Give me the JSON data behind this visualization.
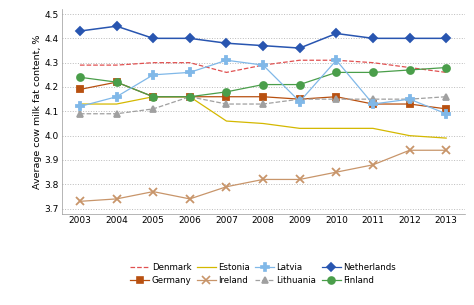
{
  "years": [
    2003,
    2004,
    2005,
    2006,
    2007,
    2008,
    2009,
    2010,
    2011,
    2012,
    2013
  ],
  "series": {
    "Denmark": [
      4.29,
      4.29,
      4.3,
      4.3,
      4.26,
      4.29,
      4.31,
      4.31,
      4.3,
      4.28,
      4.26
    ],
    "Germany": [
      4.19,
      4.22,
      4.16,
      4.16,
      4.16,
      4.16,
      4.15,
      4.16,
      4.13,
      4.13,
      4.11
    ],
    "Estonia": [
      4.13,
      4.13,
      4.16,
      4.16,
      4.06,
      4.05,
      4.03,
      4.03,
      4.03,
      4.0,
      3.99
    ],
    "Ireland": [
      3.73,
      3.74,
      3.77,
      3.74,
      3.79,
      3.82,
      3.82,
      3.85,
      3.88,
      3.94,
      3.94
    ],
    "Latvia": [
      4.12,
      4.16,
      4.25,
      4.26,
      4.31,
      4.29,
      4.14,
      4.31,
      4.13,
      4.15,
      4.09
    ],
    "Lithuania": [
      4.09,
      4.09,
      4.11,
      4.16,
      4.13,
      4.13,
      4.15,
      4.15,
      4.15,
      4.15,
      4.16
    ],
    "Netherlands": [
      4.43,
      4.45,
      4.4,
      4.4,
      4.38,
      4.37,
      4.36,
      4.42,
      4.4,
      4.4,
      4.4
    ],
    "Finland": [
      4.24,
      4.22,
      4.16,
      4.16,
      4.18,
      4.21,
      4.21,
      4.26,
      4.26,
      4.27,
      4.28
    ]
  },
  "colors": {
    "Denmark": "#e05050",
    "Germany": "#b85010",
    "Estonia": "#d4b800",
    "Ireland": "#c8956a",
    "Latvia": "#80b8e8",
    "Lithuania": "#a0a0a0",
    "Netherlands": "#2855b0",
    "Finland": "#4a9e4a"
  },
  "markers": {
    "Denmark": "none",
    "Germany": "s",
    "Estonia": "none",
    "Ireland": "x",
    "Latvia": "P",
    "Lithuania": "^",
    "Netherlands": "D",
    "Finland": "o"
  },
  "linestyles": {
    "Denmark": "--",
    "Germany": "-",
    "Estonia": "-",
    "Ireland": "-",
    "Latvia": "-",
    "Lithuania": "--",
    "Netherlands": "-",
    "Finland": "-"
  },
  "marker_sizes": {
    "Denmark": 4,
    "Germany": 4,
    "Estonia": 4,
    "Ireland": 6,
    "Latvia": 6,
    "Lithuania": 5,
    "Netherlands": 4,
    "Finland": 5
  },
  "legend_order": [
    "Denmark",
    "Germany",
    "Estonia",
    "Ireland",
    "Latvia",
    "Lithuania",
    "Netherlands",
    "Finland"
  ],
  "ylabel": "Average cow milk fat content, %",
  "ylim": [
    3.68,
    4.52
  ],
  "yticks": [
    3.7,
    3.8,
    3.9,
    4.0,
    4.1,
    4.2,
    4.3,
    4.4,
    4.5
  ],
  "background_color": "#ffffff",
  "grid_color": "#bbbbbb"
}
